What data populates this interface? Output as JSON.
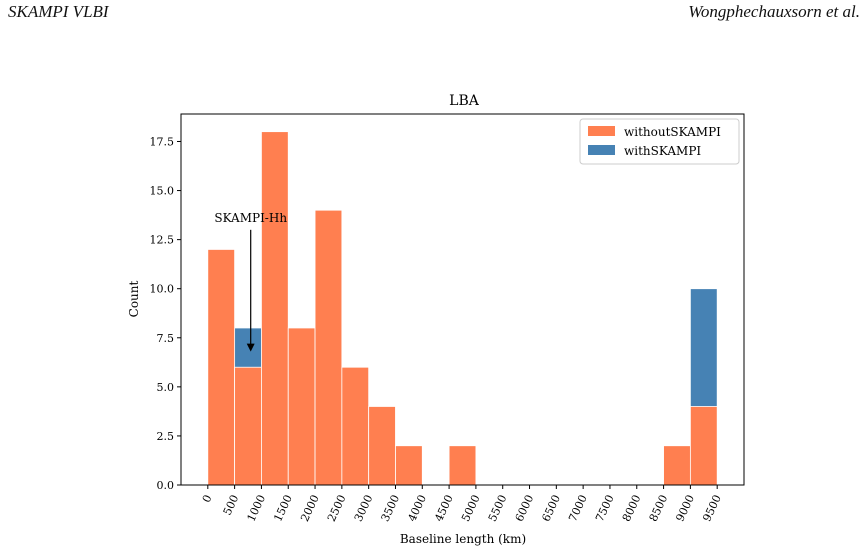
{
  "header": {
    "left": "SKAMPI VLBI",
    "right": "Wongphechauxsorn et al."
  },
  "chart_data": {
    "type": "bar",
    "title": "LBA",
    "xlabel": "Baseline length (km)",
    "ylabel": "Count",
    "xlim": [
      -500,
      10000
    ],
    "ylim": [
      0,
      18.9
    ],
    "bin_width": 500,
    "x_ticks": [
      "0",
      "500",
      "1000",
      "1500",
      "2000",
      "2500",
      "3000",
      "3500",
      "4000",
      "4500",
      "5000",
      "5500",
      "6000",
      "6500",
      "7000",
      "7500",
      "8000",
      "8500",
      "9000",
      "9500"
    ],
    "y_ticks": [
      "0.0",
      "2.5",
      "5.0",
      "7.5",
      "10.0",
      "12.5",
      "15.0",
      "17.5"
    ],
    "bin_starts": [
      0,
      500,
      1000,
      1500,
      2000,
      2500,
      3000,
      3500,
      4000,
      4500,
      5000,
      5500,
      6000,
      6500,
      7000,
      7500,
      8000,
      8500,
      9000
    ],
    "series": [
      {
        "name": "withoutSKAMPI",
        "color": "#ff7f50",
        "values": [
          12,
          6,
          18,
          8,
          14,
          6,
          4,
          2,
          0,
          2,
          0,
          0,
          0,
          0,
          0,
          0,
          0,
          2,
          4
        ]
      },
      {
        "name": "withSKAMPI",
        "color": "#4682b4",
        "values": [
          12,
          8,
          18,
          8,
          14,
          6,
          4,
          2,
          0,
          2,
          0,
          0,
          0,
          0,
          0,
          0,
          0,
          2,
          10
        ]
      }
    ],
    "legend_position": "top-right",
    "grid": false,
    "annotations": [
      {
        "text": "SKAMPI-Hh",
        "arrow_x": 800,
        "arrow_from_y": 13,
        "arrow_to_y": 7
      }
    ]
  }
}
